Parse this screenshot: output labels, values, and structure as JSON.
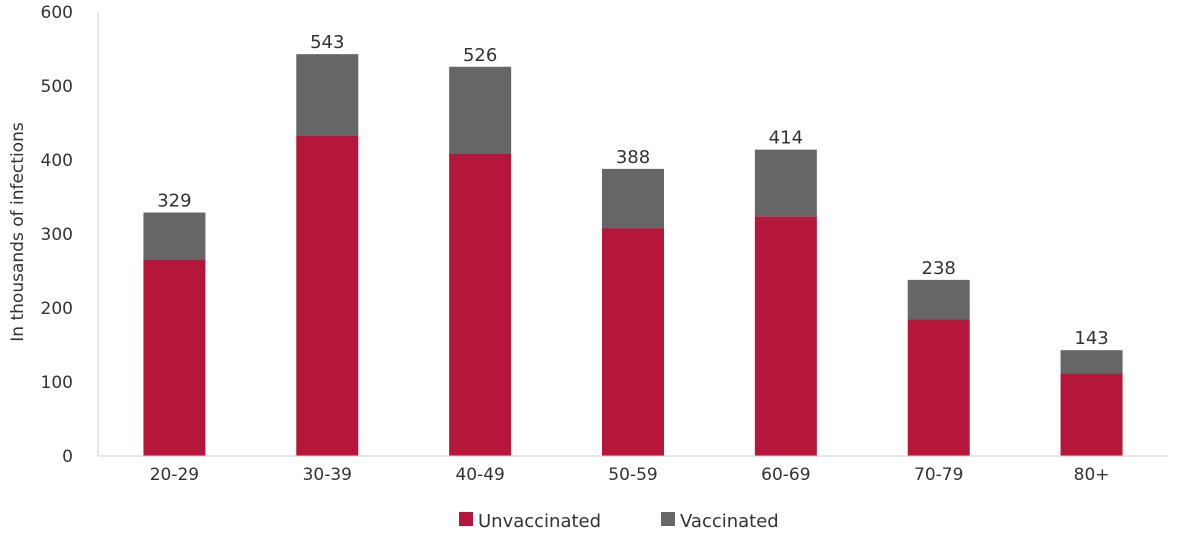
{
  "chart_data": {
    "type": "bar",
    "stacked": true,
    "categories": [
      "20-29",
      "30-39",
      "40-49",
      "50-59",
      "60-69",
      "70-79",
      "80+"
    ],
    "series": [
      {
        "name": "Unvaccinated",
        "color": "#b5173a",
        "values": [
          266,
          433,
          409,
          308,
          324,
          185,
          112
        ]
      },
      {
        "name": "Vaccinated",
        "color": "#666666",
        "values": [
          63,
          110,
          117,
          80,
          90,
          53,
          31
        ]
      }
    ],
    "totals": [
      "329",
      "543",
      "526",
      "388",
      "414",
      "238",
      "143"
    ],
    "title": "",
    "xlabel": "",
    "ylabel": "In thousands of infections",
    "ylim": [
      0,
      600
    ],
    "yticks": [
      "0",
      "100",
      "200",
      "300",
      "400",
      "500",
      "600"
    ],
    "grid": false,
    "legend_position": "bottom"
  }
}
